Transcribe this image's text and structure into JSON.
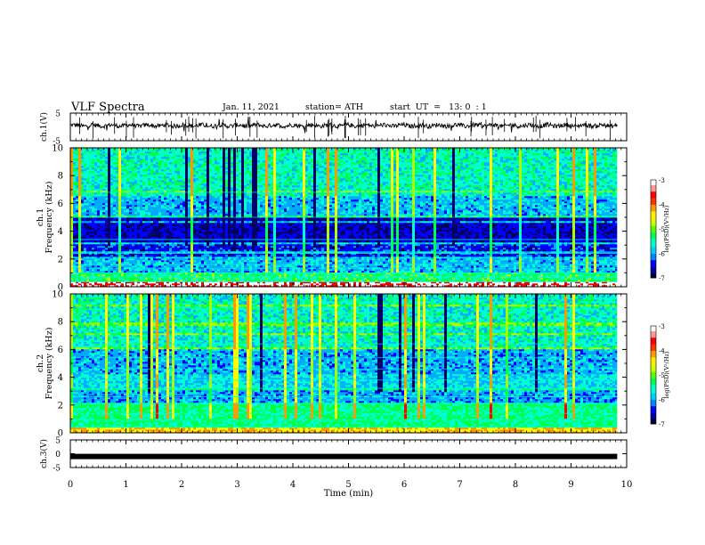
{
  "header": {
    "title": "VLF Spectra",
    "date": "Jan. 11, 2021",
    "station": "station= ATH",
    "start": "start  UT  =   13: 0  : 1"
  },
  "chart_data": [
    {
      "type": "line",
      "ylabel": "ch.1(V)",
      "ylim": [
        -5,
        5
      ],
      "yticks": [
        "5",
        "-5"
      ],
      "x_range_min": [
        0,
        9.83
      ],
      "baseline_v": 0.5,
      "color": "#000000"
    },
    {
      "type": "heatmap",
      "ylabel_line1": "ch.1",
      "ylabel_line2": "Frequency  (kHz)",
      "ylim": [
        0,
        10
      ],
      "yticks": [
        "0",
        "2",
        "4",
        "6",
        "8",
        "10"
      ],
      "x_range_min": [
        0,
        9.83
      ],
      "colorbar": {
        "label": "log(PSD)(V²/Hz)",
        "range": [
          -7,
          -3
        ],
        "ticks": [
          "-3",
          "-4",
          "-5",
          "-6",
          "-7"
        ]
      },
      "colormap": [
        "#000066",
        "#0000ff",
        "#00aaff",
        "#00ffcc",
        "#00ff44",
        "#aaff00",
        "#ffff00",
        "#ff9900",
        "#ff0000",
        "#ffffff"
      ]
    },
    {
      "type": "heatmap",
      "ylabel_line1": "ch.2",
      "ylabel_line2": "Frequency  (kHz)",
      "ylim": [
        0,
        10
      ],
      "yticks": [
        "0",
        "2",
        "4",
        "6",
        "8",
        "10"
      ],
      "x_range_min": [
        0,
        9.83
      ],
      "colorbar": {
        "label": "log(PSD)(V²/Hz)",
        "range": [
          -7,
          -3
        ],
        "ticks": [
          "-3",
          "-4",
          "-5",
          "-6",
          "-7"
        ]
      },
      "colormap": [
        "#000066",
        "#0000ff",
        "#00aaff",
        "#00ffcc",
        "#00ff44",
        "#aaff00",
        "#ffff00",
        "#ff9900",
        "#ff0000",
        "#ffffff"
      ]
    },
    {
      "type": "line",
      "ylabel": "ch.3(V)",
      "ylim": [
        -5,
        5
      ],
      "yticks": [
        "5",
        "0",
        "-5"
      ],
      "x_range_min": [
        0,
        9.83
      ],
      "baseline_v": -1,
      "color": "#000000"
    }
  ],
  "xaxis": {
    "label": "Time  (min)",
    "ticks": [
      "0",
      "1",
      "2",
      "3",
      "4",
      "5",
      "6",
      "7",
      "8",
      "9",
      "10"
    ],
    "range": [
      0,
      10
    ]
  }
}
